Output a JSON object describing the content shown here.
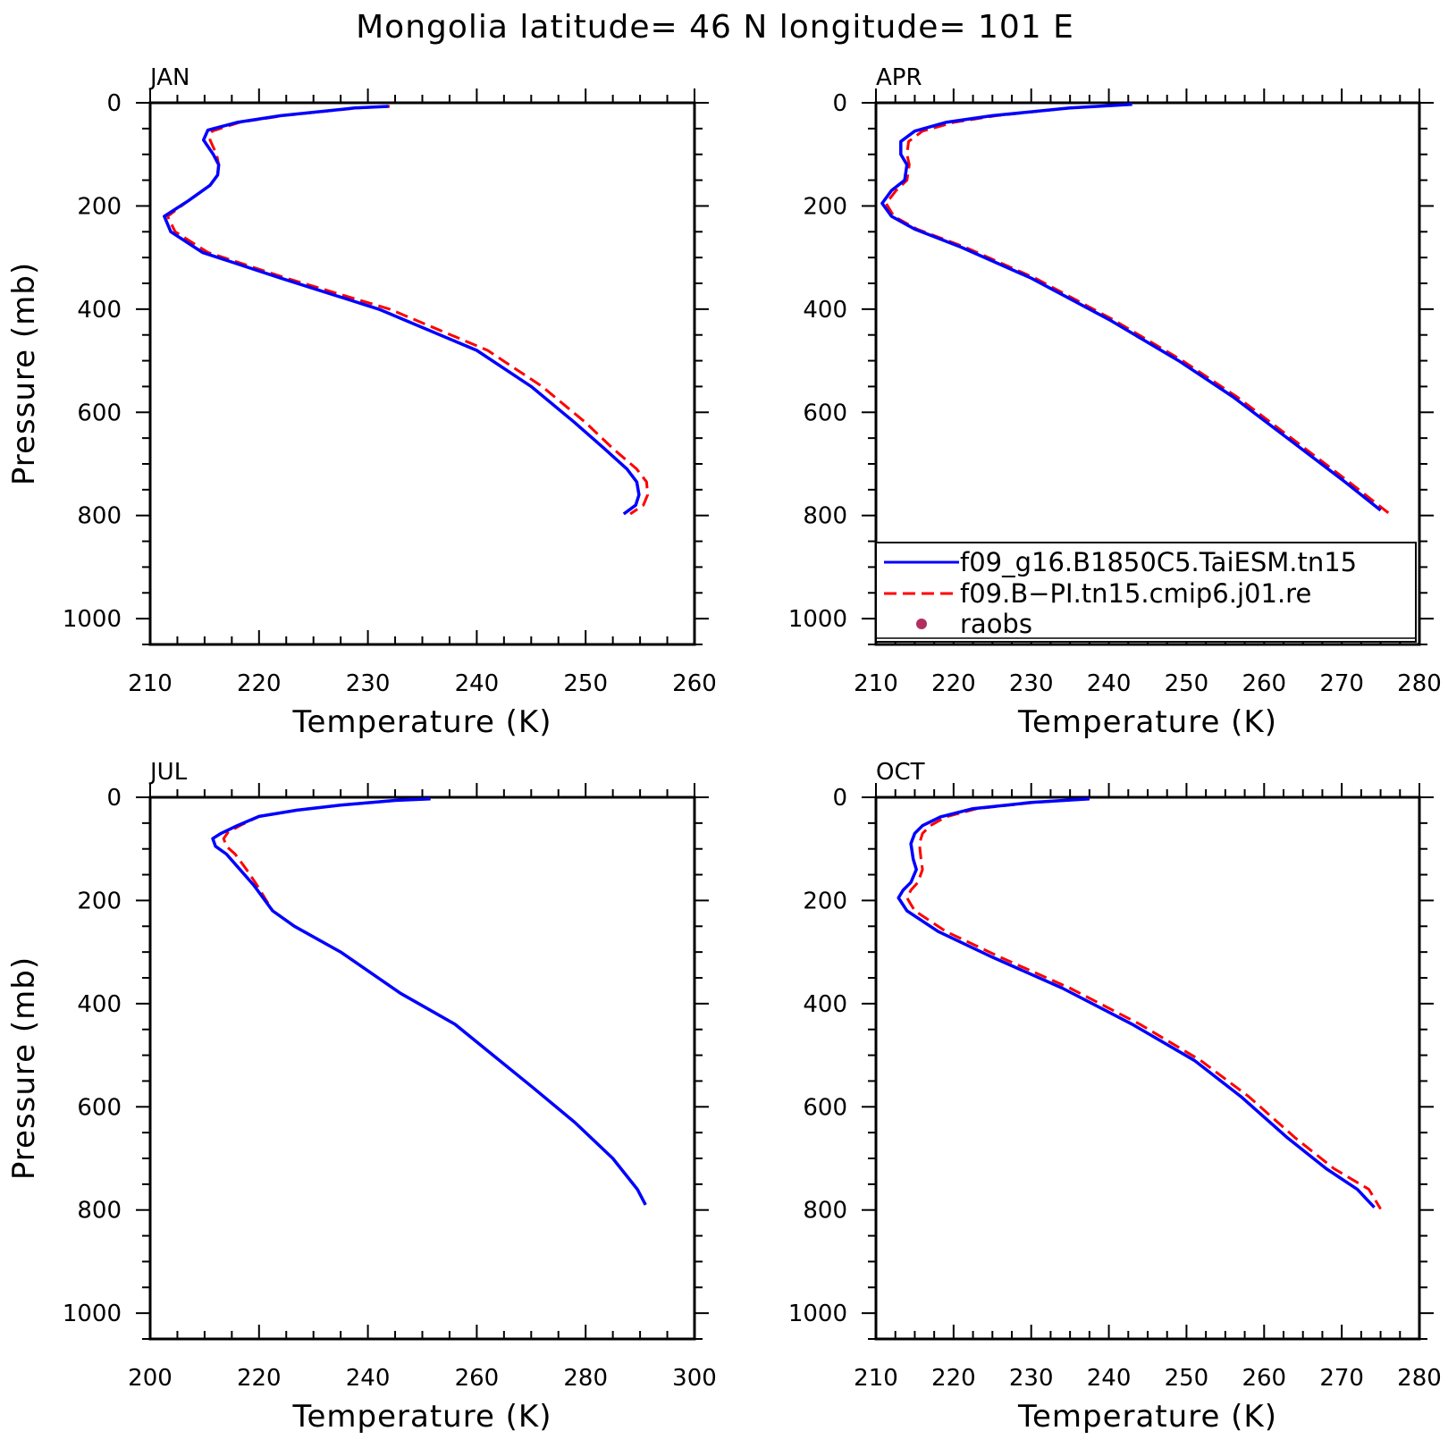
{
  "title": "Mongolia  latitude= 46 N longitude= 101 E",
  "colors": {
    "series1": "#0000ff",
    "series2": "#ff0000",
    "raobs": "#b03060"
  },
  "legend": {
    "items": [
      {
        "label": "f09_g16.B1850C5.TaiESM.tn15",
        "style": "solid",
        "color": "#0000ff"
      },
      {
        "label": "f09.B−PI.tn15.cmip6.j01.re",
        "style": "dashed",
        "color": "#ff0000"
      },
      {
        "label": "raobs",
        "style": "dot",
        "color": "#b03060"
      }
    ],
    "placement": "lower-right of APR panel"
  },
  "chart_data": [
    {
      "type": "line",
      "panel": "JAN",
      "title": "JAN",
      "xlabel": "Temperature (K)",
      "ylabel": "Pressure (mb)",
      "xlim": [
        210,
        260
      ],
      "ylim": [
        1050,
        0
      ],
      "xticks": [
        "210",
        "220",
        "230",
        "240",
        "250",
        "260"
      ],
      "yticks": [
        "0",
        "200",
        "400",
        "600",
        "800",
        "1000"
      ],
      "series": [
        {
          "name": "f09_g16.B1850C5.TaiESM.tn15",
          "x": [
            231.9,
            228.8,
            222,
            218,
            215.3,
            214.9,
            215.8,
            216.3,
            216.2,
            215.5,
            213.5,
            211.3,
            211.9,
            214.8,
            222,
            231,
            240,
            245,
            249,
            251.7,
            253.8,
            254.7,
            254.9,
            254.6,
            253.5
          ],
          "y": [
            7,
            10,
            25,
            38,
            53,
            72,
            100,
            120,
            140,
            160,
            190,
            220,
            250,
            290,
            340,
            400,
            480,
            550,
            620,
            670,
            710,
            735,
            760,
            780,
            797
          ]
        },
        {
          "name": "f09.B−PI.tn15.cmip6.j01.re",
          "x": [
            232,
            229,
            222.2,
            218.2,
            215.7,
            215.5,
            216.1,
            216.3,
            216.2,
            215.5,
            213.5,
            211.6,
            212.3,
            215.3,
            222.5,
            232,
            241,
            246,
            250,
            252.5,
            254.7,
            255.6,
            255.7,
            255.3,
            254.1
          ],
          "y": [
            7,
            10,
            25,
            38,
            55,
            72,
            100,
            120,
            140,
            160,
            190,
            220,
            250,
            290,
            340,
            400,
            480,
            550,
            620,
            670,
            710,
            735,
            760,
            780,
            797
          ]
        },
        {
          "name": "raobs",
          "x": [],
          "y": []
        }
      ]
    },
    {
      "type": "line",
      "panel": "APR",
      "title": "APR",
      "xlabel": "Temperature (K)",
      "ylabel": "",
      "xlim": [
        210,
        280
      ],
      "ylim": [
        1050,
        0
      ],
      "xticks": [
        "210",
        "220",
        "230",
        "240",
        "250",
        "260",
        "270",
        "280"
      ],
      "yticks": [
        "0",
        "200",
        "400",
        "600",
        "800",
        "1000"
      ],
      "series": [
        {
          "name": "f09_g16.B1850C5.TaiESM.tn15",
          "x": [
            243,
            235,
            225,
            219,
            215,
            213.2,
            213.2,
            214,
            213.7,
            212,
            210.8,
            212,
            215,
            221,
            230,
            240,
            249,
            256,
            263,
            270,
            275
          ],
          "y": [
            3,
            10,
            25,
            38,
            55,
            75,
            100,
            120,
            150,
            170,
            195,
            220,
            245,
            280,
            340,
            420,
            500,
            570,
            650,
            730,
            790
          ]
        },
        {
          "name": "f09.B−PI.tn15.cmip6.j01.re",
          "x": [
            243,
            235,
            225.5,
            220,
            216,
            214.2,
            214,
            214.3,
            214,
            212.6,
            211.3,
            212.3,
            215.3,
            221.5,
            230.5,
            240.5,
            249.5,
            256.5,
            263.5,
            270.5,
            276
          ],
          "y": [
            3,
            10,
            25,
            38,
            55,
            75,
            100,
            120,
            150,
            170,
            195,
            220,
            245,
            280,
            340,
            420,
            500,
            570,
            650,
            730,
            795
          ]
        },
        {
          "name": "raobs",
          "x": [],
          "y": []
        }
      ]
    },
    {
      "type": "line",
      "panel": "JUL",
      "title": "JUL",
      "xlabel": "Temperature (K)",
      "ylabel": "Pressure (mb)",
      "xlim": [
        200,
        300
      ],
      "ylim": [
        1050,
        0
      ],
      "xticks": [
        "200",
        "220",
        "240",
        "260",
        "280",
        "300"
      ],
      "yticks": [
        "0",
        "200",
        "400",
        "600",
        "800",
        "1000"
      ],
      "series": [
        {
          "name": "f09_g16.B1850C5.TaiESM.tn15",
          "x": [
            251.5,
            245,
            235,
            227,
            220,
            216,
            213,
            211.5,
            212,
            214,
            216.5,
            219,
            222.5,
            226.5,
            235,
            246,
            256,
            263,
            270,
            278,
            285,
            289.5,
            291
          ],
          "y": [
            3,
            6,
            15,
            25,
            37,
            55,
            70,
            80,
            95,
            110,
            140,
            170,
            220,
            250,
            300,
            380,
            440,
            500,
            560,
            630,
            700,
            760,
            790
          ]
        },
        {
          "name": "f09.B−PI.tn15.cmip6.j01.re",
          "x": [
            251.5,
            245,
            235,
            227,
            220,
            216.5,
            214.3,
            213.5,
            214,
            215.6,
            217.7,
            219.6,
            222.5,
            226.5,
            235,
            246,
            256,
            263,
            270,
            278,
            285,
            289.5,
            291
          ],
          "y": [
            3,
            6,
            15,
            25,
            37,
            55,
            68,
            80,
            95,
            110,
            140,
            170,
            220,
            250,
            300,
            380,
            440,
            500,
            560,
            630,
            700,
            760,
            790
          ]
        },
        {
          "name": "raobs",
          "x": [],
          "y": []
        }
      ]
    },
    {
      "type": "line",
      "panel": "OCT",
      "title": "OCT",
      "xlabel": "Temperature (K)",
      "ylabel": "",
      "xlim": [
        210,
        280
      ],
      "ylim": [
        1050,
        0
      ],
      "xticks": [
        "210",
        "220",
        "230",
        "240",
        "250",
        "260",
        "270",
        "280"
      ],
      "yticks": [
        "0",
        "200",
        "400",
        "600",
        "800",
        "1000"
      ],
      "series": [
        {
          "name": "f09_g16.B1850C5.TaiESM.tn15",
          "x": [
            237.5,
            230,
            222.5,
            218.3,
            216,
            215,
            214.5,
            214.8,
            215.2,
            214.5,
            213.5,
            212.9,
            214,
            218,
            225,
            234,
            243,
            251,
            257,
            263,
            268,
            272,
            274.2
          ],
          "y": [
            3,
            10,
            22,
            38,
            55,
            70,
            90,
            120,
            140,
            165,
            180,
            195,
            220,
            260,
            310,
            370,
            440,
            510,
            580,
            660,
            720,
            760,
            795
          ]
        },
        {
          "name": "f09.B−PI.tn15.cmip6.j01.re",
          "x": [
            237.5,
            230.3,
            223,
            219,
            217,
            216,
            215.6,
            215.8,
            216,
            215.4,
            214.5,
            214,
            215,
            219,
            226,
            235,
            244,
            251.8,
            258,
            264,
            269,
            273.5,
            275
          ],
          "y": [
            3,
            10,
            22,
            38,
            55,
            70,
            90,
            120,
            140,
            165,
            180,
            195,
            220,
            260,
            310,
            370,
            440,
            510,
            580,
            660,
            720,
            760,
            798
          ]
        },
        {
          "name": "raobs",
          "x": [],
          "y": []
        }
      ]
    }
  ]
}
